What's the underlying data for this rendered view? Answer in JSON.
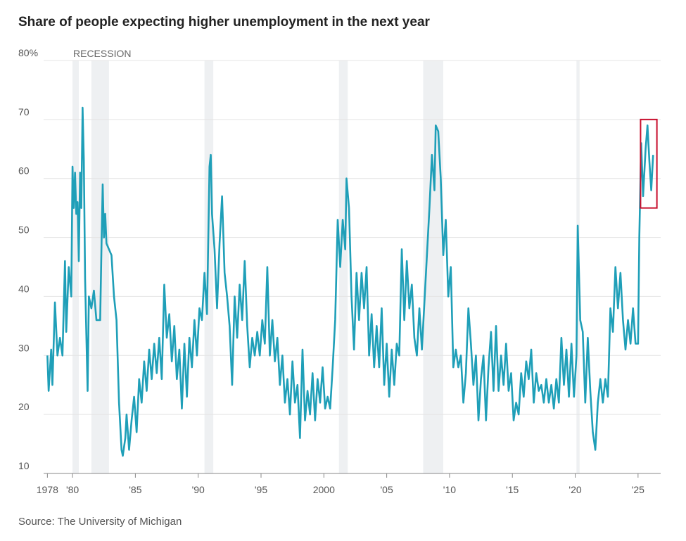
{
  "chart_data": {
    "type": "line",
    "title": "Share of people expecting higher unemployment in the next year",
    "source": "Source: The University of Michigan",
    "recession_label": "RECESSION",
    "recessions": [
      [
        1980.0,
        1980.5
      ],
      [
        1981.5,
        1982.9
      ],
      [
        1990.5,
        1991.2
      ],
      [
        2001.2,
        2001.9
      ],
      [
        2007.9,
        2009.5
      ],
      [
        2020.1,
        2020.35
      ]
    ],
    "recession_color": "#eef0f2",
    "highlight_box": {
      "xlim": [
        2025.2,
        2026.5
      ],
      "ylim": [
        55,
        70
      ],
      "color": "#c8102e"
    },
    "color": "#1f9fb8",
    "xlim": [
      1977.7,
      2026.8
    ],
    "ylim": [
      10,
      80
    ],
    "xticks": [
      1978,
      {
        "value": 1980,
        "label": "'80"
      },
      {
        "value": 1985,
        "label": "'85"
      },
      {
        "value": 1990,
        "label": "'90"
      },
      {
        "value": 1995,
        "label": "'95"
      },
      2000,
      {
        "value": 2005,
        "label": "'05"
      },
      {
        "value": 2010,
        "label": "'10"
      },
      {
        "value": 2015,
        "label": "'15"
      },
      {
        "value": 2020,
        "label": "'20"
      },
      {
        "value": 2025,
        "label": "'25"
      }
    ],
    "yticks": [
      10,
      20,
      30,
      40,
      50,
      60,
      70,
      {
        "value": 80,
        "label": "80%"
      }
    ],
    "grid": true,
    "x": [
      1978.0,
      1978.1,
      1978.3,
      1978.4,
      1978.6,
      1978.8,
      1979.0,
      1979.2,
      1979.4,
      1979.5,
      1979.7,
      1979.9,
      1980.0,
      1980.1,
      1980.2,
      1980.3,
      1980.4,
      1980.5,
      1980.6,
      1980.7,
      1980.8,
      1980.9,
      1981.0,
      1981.2,
      1981.3,
      1981.5,
      1981.7,
      1981.9,
      1982.2,
      1982.3,
      1982.4,
      1982.5,
      1982.6,
      1982.7,
      1982.9,
      1983.1,
      1983.3,
      1983.5,
      1983.7,
      1983.9,
      1984.0,
      1984.2,
      1984.3,
      1984.5,
      1984.7,
      1984.9,
      1985.1,
      1985.3,
      1985.5,
      1985.7,
      1985.9,
      1986.1,
      1986.3,
      1986.5,
      1986.7,
      1986.9,
      1987.1,
      1987.3,
      1987.5,
      1987.7,
      1987.9,
      1988.1,
      1988.3,
      1988.5,
      1988.7,
      1988.9,
      1989.1,
      1989.3,
      1989.5,
      1989.7,
      1989.9,
      1990.1,
      1990.3,
      1990.5,
      1990.7,
      1990.9,
      1991.0,
      1991.1,
      1991.3,
      1991.5,
      1991.7,
      1991.9,
      1992.1,
      1992.3,
      1992.5,
      1992.7,
      1992.9,
      1993.1,
      1993.3,
      1993.5,
      1993.7,
      1993.9,
      1994.1,
      1994.3,
      1994.5,
      1994.7,
      1994.9,
      1995.1,
      1995.3,
      1995.5,
      1995.7,
      1995.9,
      1996.1,
      1996.3,
      1996.5,
      1996.7,
      1996.9,
      1997.1,
      1997.3,
      1997.5,
      1997.7,
      1997.9,
      1998.1,
      1998.3,
      1998.5,
      1998.7,
      1998.9,
      1999.1,
      1999.3,
      1999.5,
      1999.7,
      1999.9,
      2000.1,
      2000.3,
      2000.5,
      2000.7,
      2000.9,
      2001.1,
      2001.3,
      2001.5,
      2001.7,
      2001.8,
      2002.0,
      2002.2,
      2002.4,
      2002.6,
      2002.8,
      2003.0,
      2003.2,
      2003.4,
      2003.6,
      2003.8,
      2004.0,
      2004.2,
      2004.4,
      2004.6,
      2004.8,
      2005.0,
      2005.2,
      2005.4,
      2005.6,
      2005.8,
      2006.0,
      2006.2,
      2006.4,
      2006.6,
      2006.8,
      2007.0,
      2007.2,
      2007.4,
      2007.6,
      2007.8,
      2008.0,
      2008.2,
      2008.4,
      2008.6,
      2008.8,
      2008.9,
      2009.1,
      2009.3,
      2009.5,
      2009.7,
      2009.9,
      2010.1,
      2010.3,
      2010.5,
      2010.7,
      2010.9,
      2011.1,
      2011.3,
      2011.5,
      2011.7,
      2011.9,
      2012.1,
      2012.3,
      2012.5,
      2012.7,
      2012.9,
      2013.1,
      2013.3,
      2013.5,
      2013.7,
      2013.9,
      2014.1,
      2014.3,
      2014.5,
      2014.7,
      2014.9,
      2015.1,
      2015.3,
      2015.5,
      2015.7,
      2015.9,
      2016.1,
      2016.3,
      2016.5,
      2016.7,
      2016.9,
      2017.1,
      2017.3,
      2017.5,
      2017.7,
      2017.9,
      2018.1,
      2018.3,
      2018.5,
      2018.7,
      2018.9,
      2019.1,
      2019.3,
      2019.5,
      2019.7,
      2019.9,
      2020.1,
      2020.2,
      2020.4,
      2020.6,
      2020.8,
      2021.0,
      2021.2,
      2021.4,
      2021.6,
      2021.8,
      2022.0,
      2022.2,
      2022.4,
      2022.6,
      2022.8,
      2023.0,
      2023.2,
      2023.4,
      2023.6,
      2023.8,
      2024.0,
      2024.2,
      2024.4,
      2024.6,
      2024.8,
      2025.0,
      2025.1,
      2025.25,
      2025.4,
      2025.6,
      2025.75,
      2025.9,
      2026.05,
      2026.2
    ],
    "values": [
      30,
      24,
      31,
      25,
      39,
      30,
      33,
      30,
      46,
      34,
      45,
      40,
      62,
      55,
      61,
      54,
      56,
      46,
      61,
      55,
      72,
      63,
      43,
      24,
      40,
      38,
      41,
      36,
      36,
      48,
      59,
      50,
      54,
      49,
      48,
      47,
      40,
      36,
      22,
      14,
      13,
      16,
      20,
      14,
      19,
      23,
      17,
      26,
      22,
      29,
      24,
      31,
      26,
      32,
      27,
      33,
      26,
      42,
      33,
      37,
      29,
      35,
      26,
      31,
      21,
      32,
      23,
      33,
      28,
      36,
      30,
      38,
      36,
      44,
      37,
      62,
      64,
      54,
      48,
      38,
      49,
      57,
      44,
      40,
      35,
      25,
      40,
      33,
      42,
      36,
      46,
      35,
      28,
      33,
      30,
      34,
      30,
      36,
      32,
      45,
      30,
      36,
      29,
      33,
      25,
      30,
      22,
      26,
      20,
      29,
      22,
      25,
      16,
      31,
      19,
      24,
      20,
      27,
      19,
      26,
      22,
      28,
      21,
      23,
      21,
      28,
      36,
      53,
      45,
      53,
      48,
      60,
      55,
      40,
      31,
      44,
      36,
      44,
      38,
      45,
      30,
      37,
      28,
      35,
      28,
      38,
      25,
      32,
      23,
      31,
      25,
      32,
      30,
      48,
      36,
      46,
      38,
      42,
      33,
      30,
      38,
      31,
      39,
      47,
      55,
      64,
      58,
      69,
      68,
      60,
      47,
      53,
      40,
      45,
      28,
      31,
      28,
      30,
      22,
      27,
      38,
      32,
      25,
      30,
      19,
      26,
      30,
      19,
      28,
      34,
      24,
      35,
      24,
      30,
      25,
      32,
      24,
      27,
      19,
      22,
      20,
      27,
      23,
      29,
      26,
      31,
      22,
      27,
      24,
      25,
      22,
      26,
      22,
      25,
      21,
      26,
      22,
      33,
      25,
      31,
      23,
      32,
      23,
      30,
      52,
      36,
      34,
      22,
      33,
      24,
      17,
      14,
      22,
      26,
      22,
      26,
      23,
      38,
      34,
      45,
      38,
      44,
      36,
      31,
      36,
      32,
      38,
      32,
      32,
      50,
      66,
      57,
      65,
      69,
      63,
      58,
      64
    ]
  }
}
